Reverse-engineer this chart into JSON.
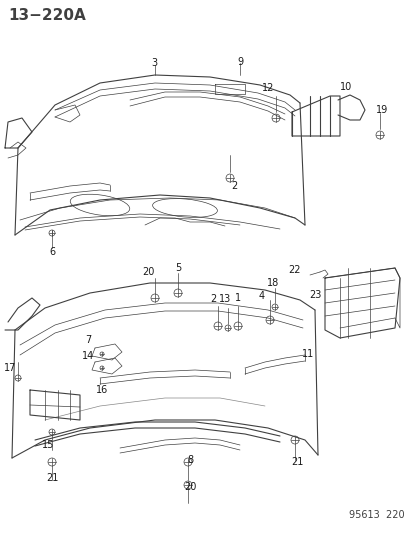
{
  "title": "13−220A",
  "footer": "95613  220",
  "bg_color": "#ffffff",
  "line_color": "#404040",
  "title_fontsize": 11,
  "footer_fontsize": 7,
  "label_fontsize": 7,
  "fig_width": 4.14,
  "fig_height": 5.33,
  "dpi": 100
}
